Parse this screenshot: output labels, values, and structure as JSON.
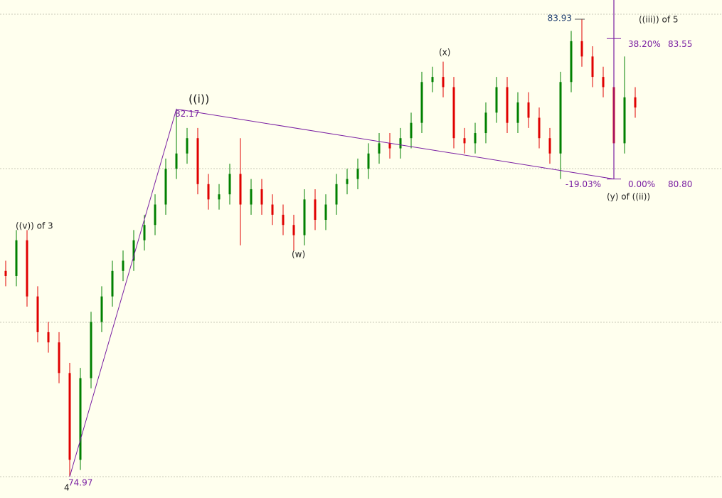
{
  "chart_data": {
    "type": "candlestick",
    "up_color": "#008000",
    "down_color": "#e00000",
    "line_color": "#7a1fa2",
    "open": [
      79.0,
      78.9,
      79.6,
      78.5,
      77.8,
      77.6,
      77.0,
      75.3,
      76.9,
      78.0,
      78.5,
      79.0,
      79.2,
      79.6,
      79.9,
      80.3,
      81.0,
      81.3,
      81.6,
      80.7,
      80.4,
      80.5,
      80.9,
      80.3,
      80.6,
      80.3,
      80.1,
      79.9,
      79.7,
      80.4,
      80.0,
      80.3,
      80.7,
      80.8,
      81.0,
      81.3,
      81.5,
      81.4,
      81.6,
      81.9,
      82.7,
      82.8,
      82.6,
      81.6,
      81.5,
      81.7,
      82.1,
      82.6,
      81.9,
      82.3,
      82.0,
      81.6,
      81.3,
      82.7,
      83.5,
      83.2,
      82.8,
      82.6,
      81.5,
      82.4
    ],
    "high": [
      79.2,
      79.8,
      79.8,
      78.7,
      78.0,
      77.8,
      77.2,
      77.1,
      78.2,
      78.7,
      79.2,
      79.4,
      79.8,
      80.1,
      80.5,
      81.2,
      82.17,
      81.8,
      81.8,
      80.9,
      80.7,
      81.1,
      81.6,
      80.8,
      80.8,
      80.5,
      80.3,
      80.1,
      80.6,
      80.6,
      80.5,
      80.9,
      81.0,
      81.2,
      81.5,
      81.7,
      81.7,
      81.8,
      82.1,
      82.9,
      83.0,
      83.1,
      82.8,
      81.8,
      81.9,
      82.3,
      82.8,
      82.8,
      82.5,
      82.5,
      82.2,
      81.8,
      82.9,
      83.7,
      83.93,
      83.4,
      83.0,
      82.8,
      83.2,
      82.6
    ],
    "low": [
      78.7,
      78.7,
      78.3,
      77.6,
      77.4,
      76.8,
      74.97,
      75.1,
      76.7,
      77.8,
      78.3,
      78.8,
      79.0,
      79.4,
      79.7,
      80.1,
      80.8,
      81.1,
      80.5,
      80.2,
      80.2,
      80.3,
      79.5,
      80.1,
      80.1,
      79.9,
      79.7,
      79.4,
      79.5,
      79.8,
      79.8,
      80.1,
      80.5,
      80.6,
      80.8,
      81.1,
      81.2,
      81.2,
      81.4,
      81.7,
      82.5,
      82.4,
      81.4,
      81.3,
      81.3,
      81.5,
      81.9,
      81.7,
      81.7,
      81.8,
      81.4,
      81.1,
      80.8,
      82.5,
      83.0,
      82.6,
      82.4,
      80.8,
      81.3,
      82.0
    ],
    "close": [
      78.9,
      79.6,
      78.5,
      77.8,
      77.6,
      77.0,
      75.3,
      76.9,
      78.0,
      78.5,
      79.0,
      79.2,
      79.6,
      79.9,
      80.3,
      81.0,
      81.3,
      81.6,
      80.7,
      80.4,
      80.5,
      80.9,
      80.3,
      80.6,
      80.3,
      80.1,
      79.9,
      79.7,
      80.4,
      80.0,
      80.3,
      80.7,
      80.8,
      81.0,
      81.3,
      81.5,
      81.4,
      81.6,
      81.9,
      82.7,
      82.8,
      82.6,
      81.6,
      81.5,
      81.7,
      82.1,
      82.6,
      81.9,
      82.3,
      82.0,
      81.6,
      81.3,
      82.7,
      83.5,
      83.2,
      82.8,
      82.6,
      81.5,
      82.4,
      82.2
    ],
    "pivots": [
      74.97,
      82.17,
      {
        "value": 80.8,
        "label": "80.80"
      }
    ],
    "swing_high": 83.93,
    "retracement": {
      "value": -19.03,
      "label": "-19.03%"
    },
    "fib_levels": [
      {
        "percent": {
          "value": 38.2,
          "label": "38.20%"
        },
        "price": 83.55
      },
      {
        "percent": {
          "value": 0,
          "label": "0.00%"
        },
        "price": {
          "value": 80.8,
          "label": "80.80"
        }
      }
    ],
    "wave_labels": [
      "((v)) of 3",
      "4",
      "((i))",
      "(w)",
      "(x)",
      "((iii)) of 5",
      "(y) of ((ii))"
    ]
  }
}
